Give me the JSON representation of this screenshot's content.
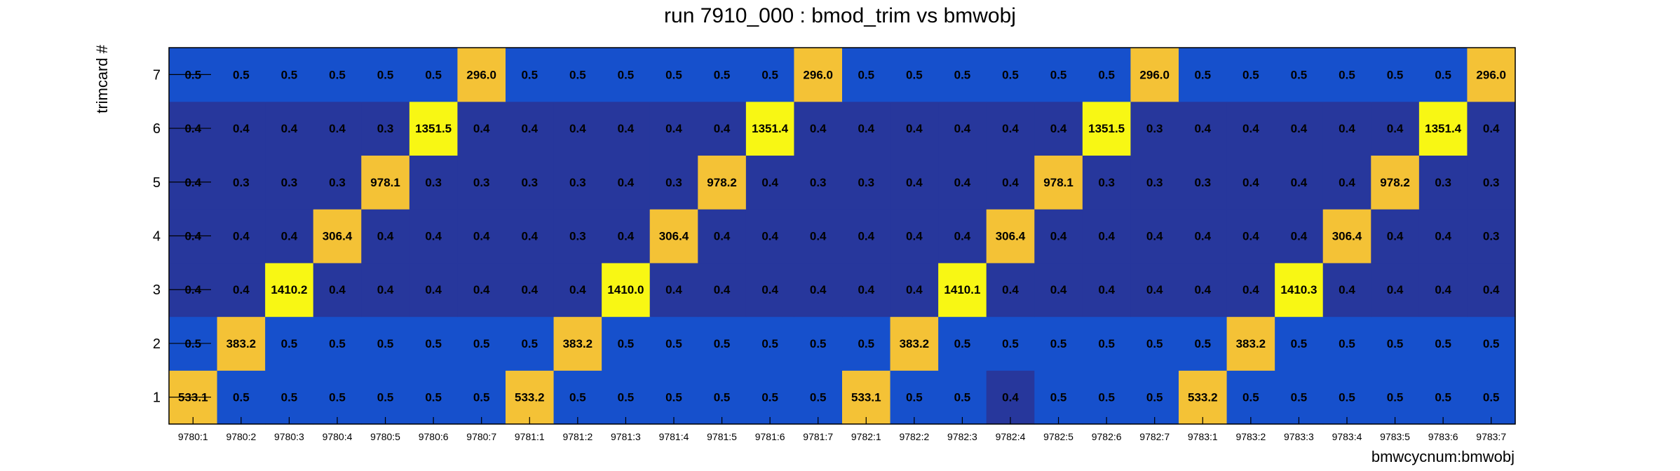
{
  "chart_data": {
    "type": "heatmap",
    "title": "run 7910_000 : bmod_trim vs bmwobj",
    "xlabel": "bmwcycnum:bmwobj",
    "ylabel": "trimcard #",
    "x_categories": [
      "9780:1",
      "9780:2",
      "9780:3",
      "9780:4",
      "9780:5",
      "9780:6",
      "9780:7",
      "9781:1",
      "9781:2",
      "9781:3",
      "9781:4",
      "9781:5",
      "9781:6",
      "9781:7",
      "9782:1",
      "9782:2",
      "9782:3",
      "9782:4",
      "9782:5",
      "9782:6",
      "9782:7",
      "9783:1",
      "9783:2",
      "9783:3",
      "9783:4",
      "9783:5",
      "9783:6",
      "9783:7"
    ],
    "y_categories": [
      "1",
      "2",
      "3",
      "4",
      "5",
      "6",
      "7"
    ],
    "values": [
      [
        "533.1",
        "0.5",
        "0.5",
        "0.5",
        "0.5",
        "0.5",
        "0.5",
        "533.2",
        "0.5",
        "0.5",
        "0.5",
        "0.5",
        "0.5",
        "0.5",
        "533.1",
        "0.5",
        "0.5",
        "0.4",
        "0.5",
        "0.5",
        "0.5",
        "533.2",
        "0.5",
        "0.5",
        "0.5",
        "0.5",
        "0.5",
        "0.5"
      ],
      [
        "0.5",
        "383.2",
        "0.5",
        "0.5",
        "0.5",
        "0.5",
        "0.5",
        "0.5",
        "383.2",
        "0.5",
        "0.5",
        "0.5",
        "0.5",
        "0.5",
        "0.5",
        "383.2",
        "0.5",
        "0.5",
        "0.5",
        "0.5",
        "0.5",
        "0.5",
        "383.2",
        "0.5",
        "0.5",
        "0.5",
        "0.5",
        "0.5"
      ],
      [
        "0.4",
        "0.4",
        "1410.2",
        "0.4",
        "0.4",
        "0.4",
        "0.4",
        "0.4",
        "0.4",
        "1410.0",
        "0.4",
        "0.4",
        "0.4",
        "0.4",
        "0.4",
        "0.4",
        "1410.1",
        "0.4",
        "0.4",
        "0.4",
        "0.4",
        "0.4",
        "0.4",
        "1410.3",
        "0.4",
        "0.4",
        "0.4",
        "0.4"
      ],
      [
        "0.4",
        "0.4",
        "0.4",
        "306.4",
        "0.4",
        "0.4",
        "0.4",
        "0.4",
        "0.3",
        "0.4",
        "306.4",
        "0.4",
        "0.4",
        "0.4",
        "0.4",
        "0.4",
        "0.4",
        "306.4",
        "0.4",
        "0.4",
        "0.4",
        "0.4",
        "0.4",
        "0.4",
        "306.4",
        "0.4",
        "0.4",
        "0.3"
      ],
      [
        "0.4",
        "0.3",
        "0.3",
        "0.3",
        "978.1",
        "0.3",
        "0.3",
        "0.3",
        "0.3",
        "0.4",
        "0.3",
        "978.2",
        "0.4",
        "0.3",
        "0.3",
        "0.4",
        "0.4",
        "0.4",
        "978.1",
        "0.3",
        "0.3",
        "0.3",
        "0.4",
        "0.4",
        "0.4",
        "978.2",
        "0.3",
        "0.3"
      ],
      [
        "0.4",
        "0.4",
        "0.4",
        "0.4",
        "0.3",
        "1351.5",
        "0.4",
        "0.4",
        "0.4",
        "0.4",
        "0.4",
        "0.4",
        "1351.4",
        "0.4",
        "0.4",
        "0.4",
        "0.4",
        "0.4",
        "0.4",
        "1351.5",
        "0.3",
        "0.4",
        "0.4",
        "0.4",
        "0.4",
        "0.4",
        "1351.4",
        "0.4"
      ],
      [
        "0.5",
        "0.5",
        "0.5",
        "0.5",
        "0.5",
        "0.5",
        "296.0",
        "0.5",
        "0.5",
        "0.5",
        "0.5",
        "0.5",
        "0.5",
        "296.0",
        "0.5",
        "0.5",
        "0.5",
        "0.5",
        "0.5",
        "0.5",
        "296.0",
        "0.5",
        "0.5",
        "0.5",
        "0.5",
        "0.5",
        "0.5",
        "296.0"
      ]
    ],
    "colors": {
      "dark": "#27379c",
      "mid": "#1650cc",
      "high": "#f4c236",
      "peak": "#f8f714"
    },
    "grid": false,
    "legend": "none"
  }
}
